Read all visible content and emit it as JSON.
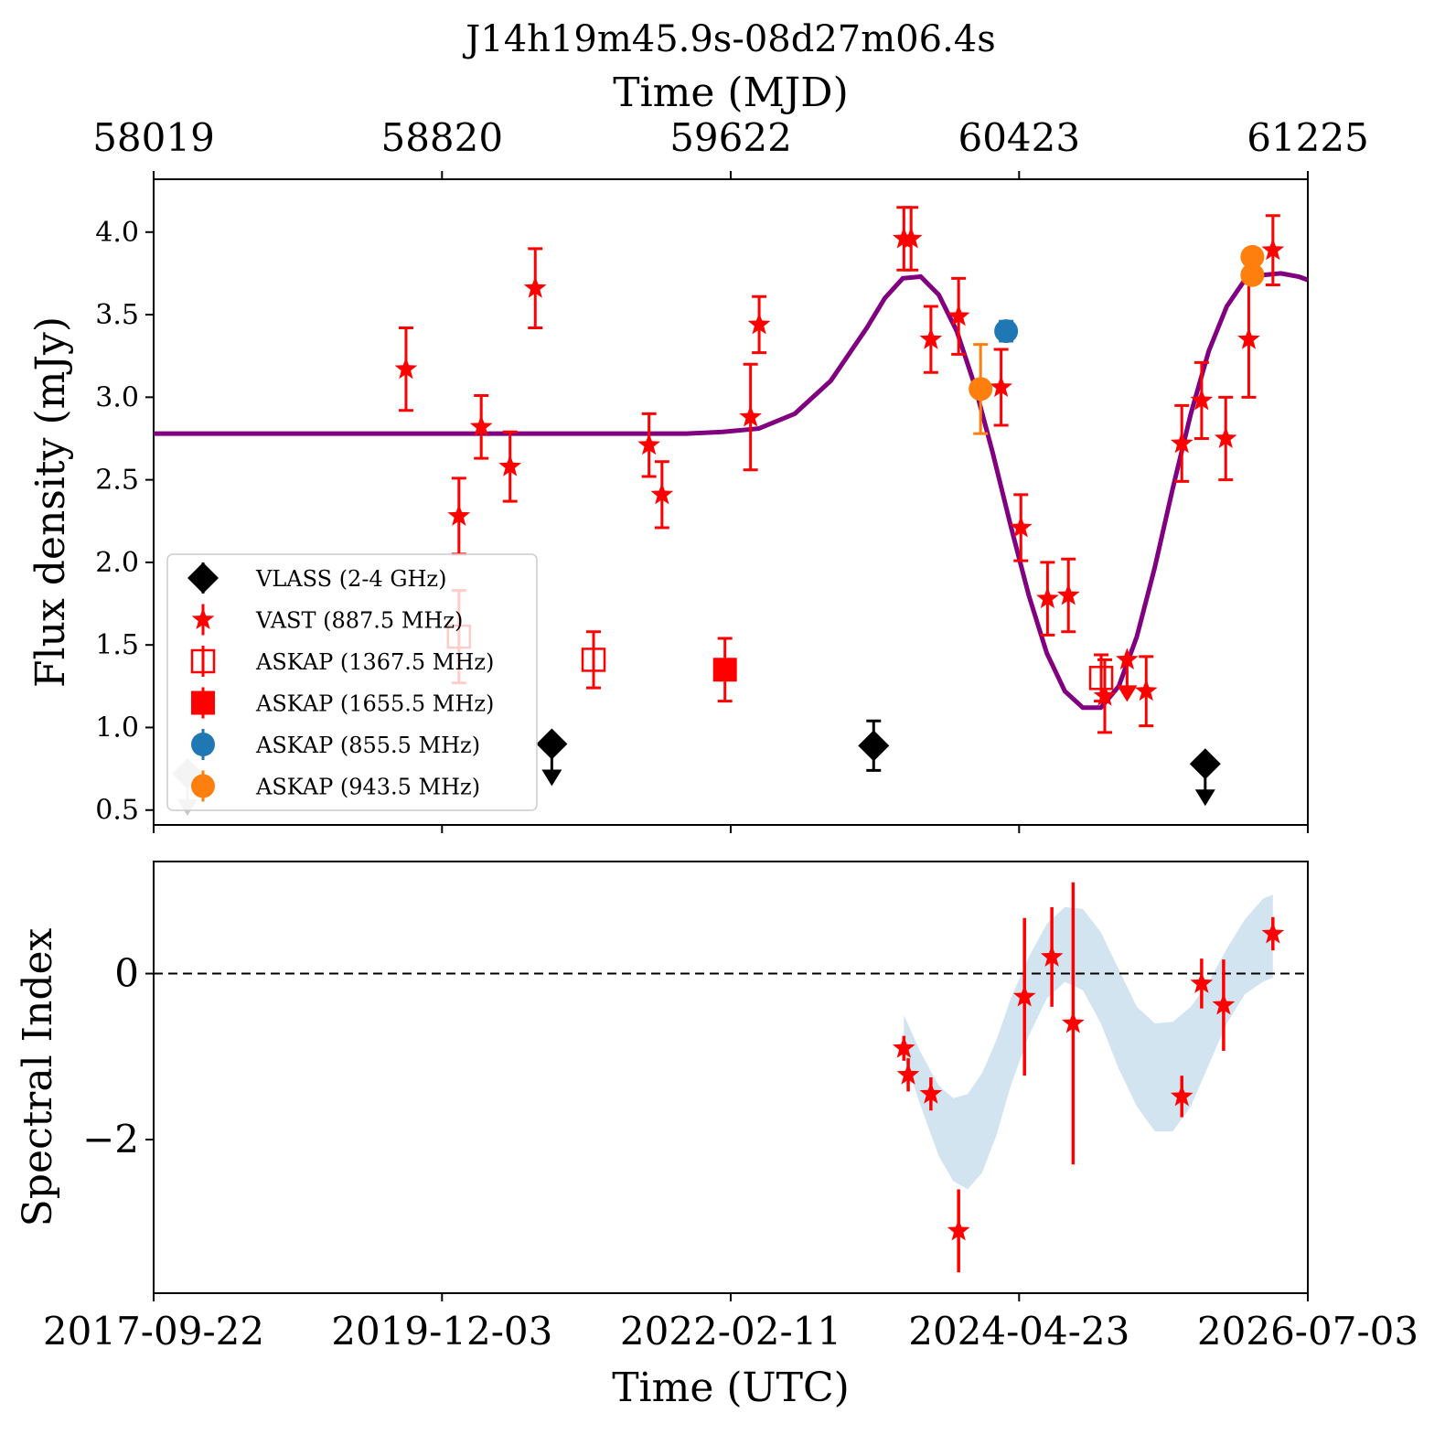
{
  "chart_data": [
    {
      "type": "scatter",
      "title": "J14h19m45.9s-08d27m06.4s",
      "top_xlabel": "Time (MJD)",
      "top_xticks": [
        "58019",
        "58820",
        "59622",
        "60423",
        "61225"
      ],
      "xlabel": "Time (UTC)",
      "xticks": [
        "2017-09-22",
        "2019-12-03",
        "2022-02-11",
        "2024-04-23",
        "2026-07-03"
      ],
      "ylabel": "Flux density (mJy)",
      "yticks": [
        "0.5",
        "1.0",
        "1.5",
        "2.0",
        "2.5",
        "3.0",
        "3.5",
        "4.0"
      ],
      "xlim": [
        58019,
        61225
      ],
      "ylim": [
        0.41,
        4.32
      ],
      "legend_position": "lower-left",
      "legend": [
        {
          "label": "VLASS (2-4 GHz)",
          "marker": "diamond",
          "color": "#000000"
        },
        {
          "label": "VAST (887.5 MHz)",
          "marker": "star",
          "color": "#ff0000"
        },
        {
          "label": "ASKAP (1367.5 MHz)",
          "marker": "open-square",
          "color": "#ff0000"
        },
        {
          "label": "ASKAP (1655.5 MHz)",
          "marker": "square",
          "color": "#ff0000"
        },
        {
          "label": "ASKAP (855.5 MHz)",
          "marker": "circle",
          "color": "#1f77b4"
        },
        {
          "label": "ASKAP (943.5 MHz)",
          "marker": "circle",
          "color": "#ff7f0e"
        }
      ],
      "series": [
        {
          "name": "VLASS (2-4 GHz)",
          "color": "#000000",
          "marker": "diamond",
          "points": [
            {
              "x": 59125,
              "y": 0.9,
              "upper_limit": true
            },
            {
              "x": 60019,
              "y": 0.89,
              "yerr": 0.15
            },
            {
              "x": 60940,
              "y": 0.78,
              "upper_limit": true
            }
          ]
        },
        {
          "name": "VLASS (2-4 GHz) earlier epoch",
          "color": "#c8c8c8",
          "marker": "diamond",
          "points": [
            {
              "x": 58113,
              "y": 0.72,
              "upper_limit": true
            }
          ]
        },
        {
          "name": "VAST (887.5 MHz)",
          "color": "#ff0000",
          "marker": "star",
          "points": [
            {
              "x": 58720,
              "y": 3.17,
              "yerr": 0.25
            },
            {
              "x": 58867,
              "y": 2.28,
              "yerr": 0.23
            },
            {
              "x": 58929,
              "y": 2.82,
              "yerr": 0.19
            },
            {
              "x": 59009,
              "y": 2.58,
              "yerr": 0.21
            },
            {
              "x": 59079,
              "y": 3.66,
              "yerr": 0.24
            },
            {
              "x": 59395,
              "y": 2.71,
              "yerr": 0.19
            },
            {
              "x": 59431,
              "y": 2.41,
              "yerr": 0.2
            },
            {
              "x": 59677,
              "y": 2.88,
              "yerr": 0.32
            },
            {
              "x": 59701,
              "y": 3.44,
              "yerr": 0.17
            },
            {
              "x": 60103,
              "y": 3.96,
              "yerr": 0.19
            },
            {
              "x": 60123,
              "y": 3.96,
              "yerr": 0.19
            },
            {
              "x": 60178,
              "y": 3.35,
              "yerr": 0.2
            },
            {
              "x": 60255,
              "y": 3.49,
              "yerr": 0.23
            },
            {
              "x": 60373,
              "y": 3.06,
              "yerr": 0.23
            },
            {
              "x": 60428,
              "y": 2.21,
              "yerr": 0.2
            },
            {
              "x": 60502,
              "y": 1.78,
              "yerr": 0.22
            },
            {
              "x": 60560,
              "y": 1.8,
              "yerr": 0.22
            },
            {
              "x": 60661,
              "y": 1.19,
              "yerr": 0.22
            },
            {
              "x": 60723,
              "y": 1.41,
              "upper_limit": true
            },
            {
              "x": 60776,
              "y": 1.22,
              "yerr": 0.21
            },
            {
              "x": 60875,
              "y": 2.72,
              "yerr": 0.23
            },
            {
              "x": 60930,
              "y": 2.98,
              "yerr": 0.23
            },
            {
              "x": 60997,
              "y": 2.75,
              "yerr": 0.25
            },
            {
              "x": 61061,
              "y": 3.35,
              "yerr": 0.35
            },
            {
              "x": 61128,
              "y": 3.89,
              "yerr": 0.21
            }
          ]
        },
        {
          "name": "ASKAP (1367.5 MHz)",
          "color": "#ff0000",
          "marker": "open-square",
          "points": [
            {
              "x": 58867,
              "y": 1.55,
              "yerr": 0.28
            },
            {
              "x": 59241,
              "y": 1.41,
              "yerr": 0.17
            },
            {
              "x": 60651,
              "y": 1.3,
              "yerr": 0.14
            }
          ]
        },
        {
          "name": "ASKAP (1655.5 MHz)",
          "color": "#ff0000",
          "marker": "square",
          "points": [
            {
              "x": 59606,
              "y": 1.35,
              "yerr": 0.19
            }
          ]
        },
        {
          "name": "ASKAP (855.5 MHz)",
          "color": "#1f77b4",
          "marker": "circle",
          "points": [
            {
              "x": 60387,
              "y": 3.4,
              "yerr": 0.06
            }
          ]
        },
        {
          "name": "ASKAP (943.5 MHz)",
          "color": "#ff7f0e",
          "marker": "circle",
          "points": [
            {
              "x": 60316,
              "y": 3.05,
              "yerr": 0.27
            },
            {
              "x": 61071,
              "y": 3.85,
              "yerr": 0.05
            },
            {
              "x": 61071,
              "y": 3.74,
              "yerr": 0.05
            }
          ]
        }
      ],
      "model_curve": {
        "color": "#800080",
        "x": [
          58019,
          59500,
          59600,
          59700,
          59800,
          59900,
          60000,
          60050,
          60100,
          60150,
          60200,
          60250,
          60300,
          60350,
          60400,
          60450,
          60500,
          60550,
          60600,
          60650,
          60700,
          60750,
          60800,
          60850,
          60900,
          60950,
          61000,
          61050,
          61100,
          61150,
          61200,
          61225
        ],
        "y": [
          2.78,
          2.78,
          2.79,
          2.81,
          2.9,
          3.1,
          3.42,
          3.6,
          3.72,
          3.73,
          3.62,
          3.4,
          3.07,
          2.66,
          2.22,
          1.8,
          1.45,
          1.22,
          1.12,
          1.12,
          1.25,
          1.55,
          1.97,
          2.45,
          2.9,
          3.28,
          3.55,
          3.71,
          3.74,
          3.75,
          3.73,
          3.71
        ]
      }
    },
    {
      "type": "scatter",
      "xlabel": "Time (UTC)",
      "ylabel": "Spectral Index",
      "yticks": [
        "0",
        "−2"
      ],
      "xlim": [
        58019,
        61225
      ],
      "ylim": [
        -3.85,
        1.35
      ],
      "reference_line": {
        "y": 0,
        "style": "dashed",
        "color": "#000000"
      },
      "series": [
        {
          "name": "Spectral index",
          "color": "#ff0000",
          "marker": "star",
          "points": [
            {
              "x": 60103,
              "y": -0.9,
              "yerr": 0.15
            },
            {
              "x": 60115,
              "y": -1.22,
              "yerr": 0.2
            },
            {
              "x": 60178,
              "y": -1.45,
              "yerr": 0.2
            },
            {
              "x": 60255,
              "y": -3.1,
              "yerr": 0.5
            },
            {
              "x": 60438,
              "y": -0.28,
              "yerr": 0.95
            },
            {
              "x": 60514,
              "y": 0.2,
              "yerr": 0.6
            },
            {
              "x": 60573,
              "y": -0.6,
              "yerr": 1.7
            },
            {
              "x": 60875,
              "y": -1.48,
              "yerr": 0.25
            },
            {
              "x": 60930,
              "y": -0.12,
              "yerr": 0.3
            },
            {
              "x": 60991,
              "y": -0.38,
              "yerr": 0.55
            },
            {
              "x": 61128,
              "y": 0.48,
              "yerr": 0.2
            }
          ]
        }
      ],
      "confidence_band": {
        "color": "#aecde6",
        "x": [
          60103,
          60150,
          60200,
          60240,
          60280,
          60320,
          60360,
          60400,
          60450,
          60500,
          60550,
          60600,
          60650,
          60700,
          60750,
          60800,
          60850,
          60900,
          60950,
          61000,
          61050,
          61100,
          61128
        ],
        "upper": [
          -0.5,
          -0.95,
          -1.35,
          -1.5,
          -1.45,
          -1.2,
          -0.8,
          -0.3,
          0.2,
          0.6,
          0.8,
          0.78,
          0.5,
          0.05,
          -0.4,
          -0.6,
          -0.58,
          -0.4,
          -0.1,
          0.3,
          0.65,
          0.9,
          0.95
        ],
        "lower": [
          -1.0,
          -1.6,
          -2.2,
          -2.5,
          -2.6,
          -2.4,
          -1.95,
          -1.35,
          -0.75,
          -0.3,
          -0.1,
          -0.2,
          -0.6,
          -1.15,
          -1.6,
          -1.9,
          -1.9,
          -1.6,
          -1.1,
          -0.6,
          -0.25,
          -0.1,
          -0.05
        ]
      }
    }
  ]
}
